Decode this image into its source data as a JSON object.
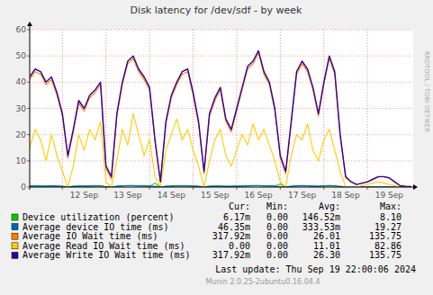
{
  "chart_data": {
    "type": "line",
    "title": "Disk latency for /dev/sdf - by week",
    "x": [
      11.25,
      11.375,
      11.5,
      11.625,
      11.75,
      11.875,
      12,
      12.125,
      12.25,
      12.375,
      12.5,
      12.625,
      12.75,
      12.875,
      13,
      13.125,
      13.25,
      13.375,
      13.5,
      13.625,
      13.75,
      13.875,
      14,
      14.125,
      14.25,
      14.375,
      14.5,
      14.625,
      14.75,
      14.875,
      15,
      15.125,
      15.25,
      15.375,
      15.5,
      15.625,
      15.75,
      15.875,
      16,
      16.125,
      16.25,
      16.375,
      16.5,
      16.625,
      16.75,
      16.875,
      17,
      17.125,
      17.25,
      17.375,
      17.5,
      17.625,
      17.75,
      17.875,
      18,
      18.125,
      18.25,
      18.375,
      18.5,
      18.625,
      18.75,
      18.875,
      19,
      19.125,
      19.25,
      19.375,
      19.5,
      19.625,
      19.75,
      19.875,
      20
    ],
    "xlim": [
      11.25,
      20.05
    ],
    "xticks": [
      {
        "value": 12,
        "label": "12 Sep"
      },
      {
        "value": 13,
        "label": "13 Sep"
      },
      {
        "value": 14,
        "label": "14 Sep"
      },
      {
        "value": 15,
        "label": "15 Sep"
      },
      {
        "value": 16,
        "label": "16 Sep"
      },
      {
        "value": 17,
        "label": "17 Sep"
      },
      {
        "value": 18,
        "label": "18 Sep"
      },
      {
        "value": 19,
        "label": "19 Sep"
      }
    ],
    "ylim": [
      0,
      60
    ],
    "yticks": [
      0,
      10,
      20,
      30,
      40,
      50,
      60
    ],
    "grid": true,
    "stats_headers": [
      "Cur:",
      "Min:",
      "Avg:",
      "Max:"
    ],
    "series": [
      {
        "name": "Device utilization (percent)",
        "color": "#00cc00",
        "values": [
          0.3,
          0.4,
          0.3,
          0.3,
          0.4,
          0.3,
          0.2,
          0.1,
          0.2,
          0.3,
          0.3,
          0.3,
          0.4,
          0.4,
          0.1,
          0.1,
          0.2,
          0.4,
          0.5,
          0.5,
          0.4,
          0.4,
          0.3,
          1.5,
          0,
          0.2,
          0.3,
          0.4,
          0.4,
          0.4,
          0.3,
          0.2,
          0.1,
          0.2,
          0.3,
          0.3,
          0.2,
          0.2,
          0.3,
          0.3,
          0.4,
          0.5,
          0.5,
          0.4,
          0.4,
          0.3,
          1.2,
          0.1,
          0.2,
          0.4,
          0.5,
          0.4,
          0.3,
          0.2,
          0.4,
          0.5,
          0.4,
          0.2,
          0.01,
          0.01,
          0.01,
          0.01,
          0.01,
          0.01,
          0.01,
          0.01,
          0.01,
          0.01,
          0.01,
          0.01,
          0.01
        ],
        "stats": [
          "6.17m",
          "0.00",
          "146.52m",
          "8.10"
        ]
      },
      {
        "name": "Average device IO time (ms)",
        "color": "#0066b3",
        "values": [
          0.4,
          0.5,
          0.4,
          0.4,
          0.5,
          0.4,
          0.3,
          0.1,
          0.3,
          0.4,
          0.4,
          0.4,
          0.5,
          0.5,
          0.1,
          0.1,
          0.3,
          0.5,
          0.6,
          0.6,
          0.5,
          0.5,
          0.4,
          0.2,
          0,
          0.3,
          0.4,
          0.5,
          0.5,
          0.5,
          0.4,
          0.3,
          0.1,
          0.3,
          0.4,
          0.4,
          0.3,
          0.3,
          0.4,
          0.4,
          0.5,
          0.6,
          0.6,
          0.5,
          0.5,
          0.4,
          0.1,
          0.1,
          0.3,
          0.5,
          0.6,
          0.5,
          0.4,
          0.3,
          0.5,
          0.6,
          0.5,
          0.2,
          0.05,
          0.05,
          0.05,
          0.05,
          0.05,
          0.05,
          0.05,
          0.05,
          0.05,
          0.05,
          0.05,
          0.05,
          0.05
        ],
        "stats": [
          "46.35m",
          "0.00",
          "333.53m",
          "19.27"
        ]
      },
      {
        "name": "Average IO Wait time (ms)",
        "color": "#ff8000",
        "values": [
          41,
          44,
          43,
          39,
          41,
          35,
          27,
          11,
          21,
          32,
          29,
          34,
          36,
          39,
          7,
          3,
          27,
          39,
          47,
          49,
          44,
          41,
          37,
          17,
          2,
          24,
          34,
          39,
          43,
          44,
          35,
          24,
          5,
          27,
          33,
          37,
          25,
          21,
          29,
          37,
          45,
          47,
          51,
          43,
          39,
          29,
          11,
          5,
          24,
          43,
          47,
          44,
          37,
          27,
          39,
          49,
          43,
          19,
          3.5,
          2,
          1,
          1.4,
          1.9,
          2.9,
          3.9,
          3.9,
          3.4,
          1.9,
          0.5,
          0.3,
          0.2
        ],
        "stats": [
          "317.92m",
          "0.00",
          "26.01",
          "135.75"
        ]
      },
      {
        "name": "Average Read IO Wait time (ms)",
        "color": "#ffcc00",
        "values": [
          15,
          22,
          18,
          10,
          20,
          12,
          6,
          0,
          8,
          20,
          14,
          22,
          18,
          25,
          2,
          0,
          10,
          22,
          16,
          28,
          20,
          12,
          18,
          4,
          0,
          14,
          20,
          26,
          18,
          22,
          14,
          8,
          0,
          10,
          18,
          22,
          12,
          8,
          14,
          20,
          16,
          24,
          18,
          22,
          16,
          10,
          2,
          0,
          12,
          20,
          18,
          24,
          14,
          10,
          18,
          22,
          14,
          6,
          0,
          0,
          0,
          0.5,
          1,
          1.5,
          2,
          1.5,
          1,
          0.5,
          0,
          0,
          0
        ],
        "stats": [
          "0.00",
          "0.00",
          "11.01",
          "82.86"
        ]
      },
      {
        "name": "Average Write IO Wait time (ms)",
        "color": "#330099",
        "values": [
          42,
          45,
          44,
          40,
          42,
          36,
          28,
          12,
          22,
          33,
          30,
          35,
          37,
          40,
          8,
          4,
          28,
          40,
          48,
          50,
          45,
          42,
          38,
          18,
          2,
          25,
          35,
          40,
          44,
          45,
          36,
          25,
          6,
          28,
          34,
          38,
          26,
          22,
          30,
          38,
          46,
          48,
          52,
          44,
          40,
          30,
          12,
          6,
          25,
          44,
          48,
          45,
          38,
          28,
          40,
          50,
          44,
          20,
          4,
          2,
          1,
          1.5,
          2,
          3,
          4,
          4,
          3.5,
          2,
          0.5,
          0.3,
          0.2
        ],
        "stats": [
          "317.92m",
          "0.00",
          "26.30",
          "135.75"
        ]
      }
    ],
    "side_text": "RRDTOOL / TOBI OETIKER",
    "footer": [
      "Last update:  Thu Sep 19 22:00:06 2024",
      "Munin 2.0.25-2ubuntu0.16.04.4"
    ]
  }
}
